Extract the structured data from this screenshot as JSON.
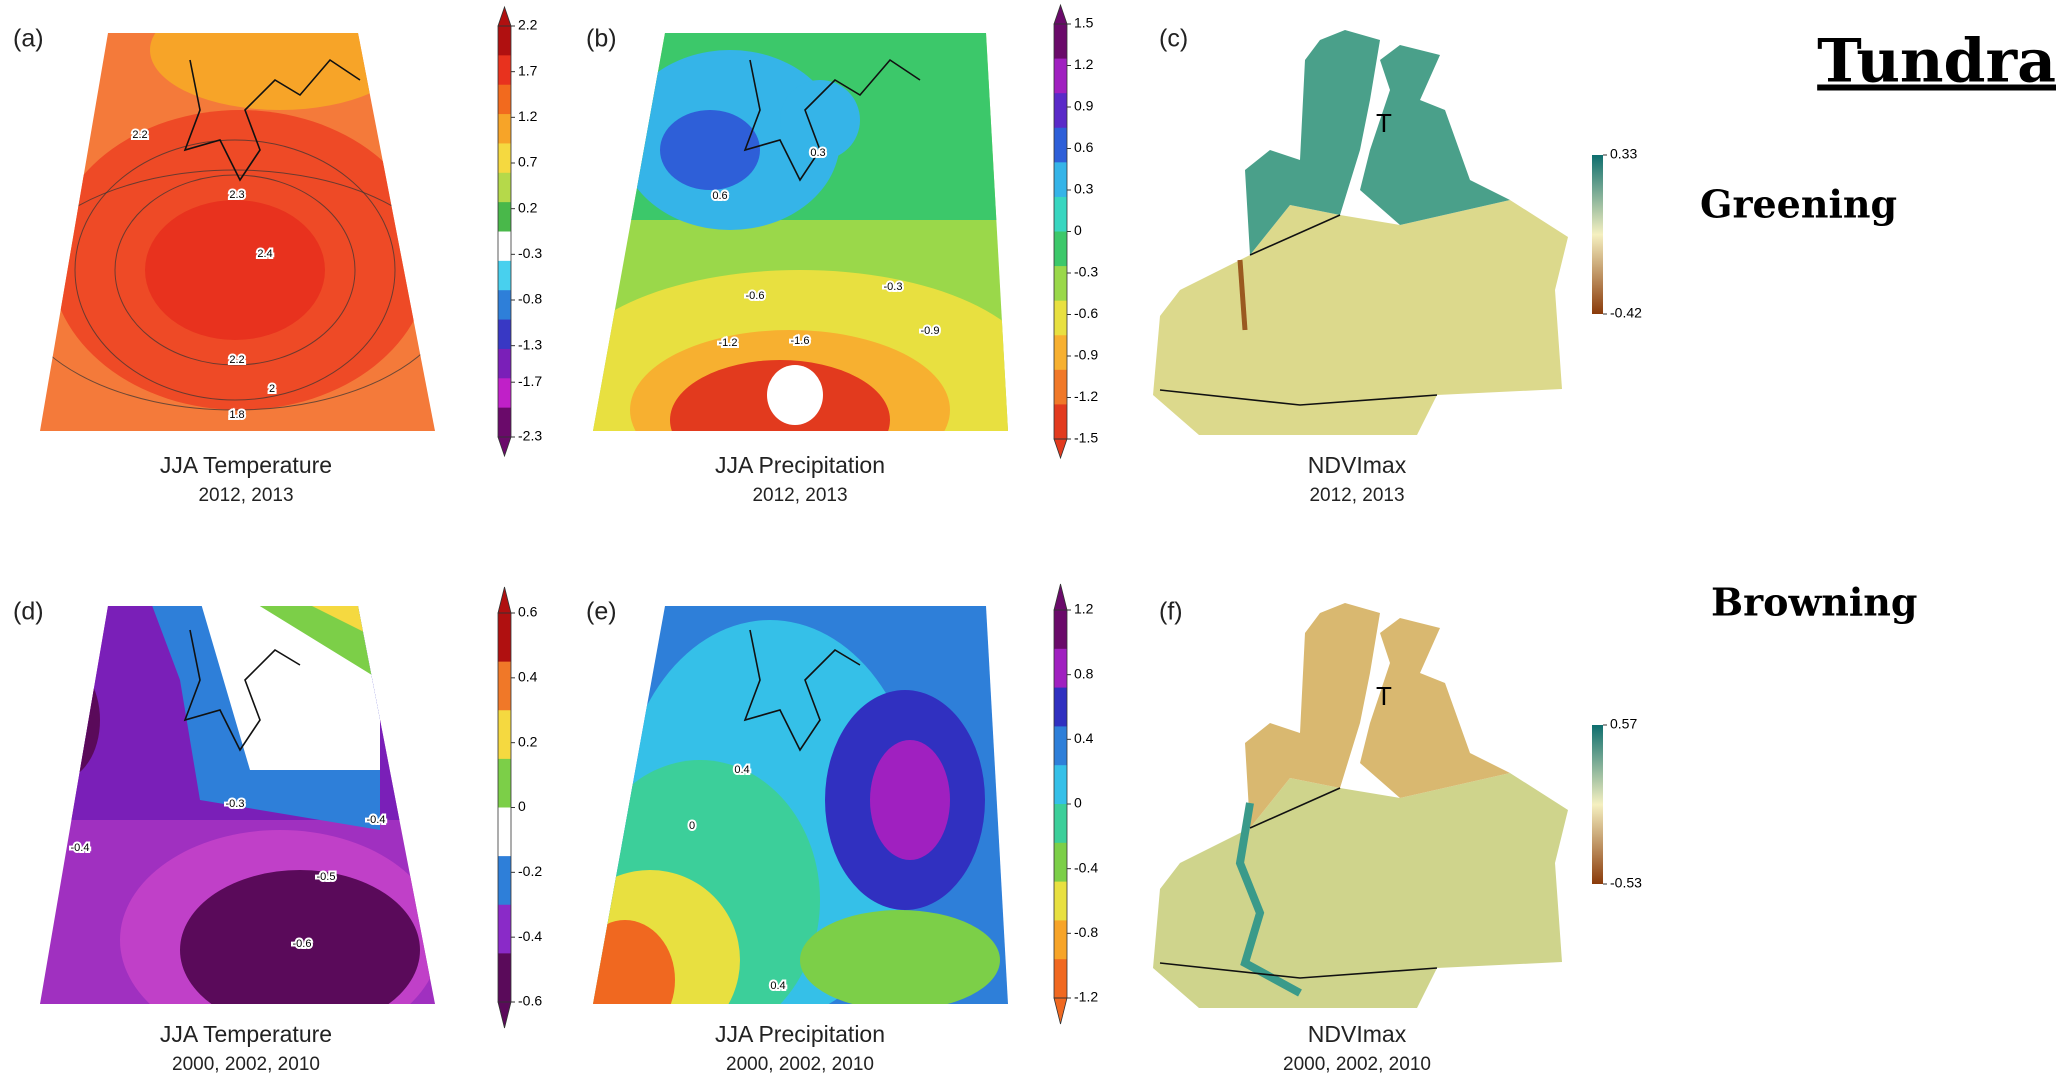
{
  "title": "Tundra",
  "row_labels": [
    "Greening",
    "Browning"
  ],
  "panels": [
    {
      "label": "(a)",
      "caption": "JJA Temperature",
      "years": "2012, 2013",
      "contour_labels": [
        2.2,
        2.3,
        2.4,
        2.2,
        2,
        1.8
      ],
      "colorbar": {
        "lim": [
          -2.3,
          2.2
        ],
        "ticks": [
          2.2,
          1.7,
          1.2,
          0.7,
          0.2,
          -0.3,
          -0.8,
          -1.3,
          -1.7,
          -2.3
        ],
        "colors": [
          "#b01010",
          "#e8321e",
          "#f26a1e",
          "#f7a428",
          "#f5d940",
          "#b5d94a",
          "#49b84a",
          "#ffffff",
          "#48d0ee",
          "#2e7fd9",
          "#3838c4",
          "#7a1fb8",
          "#c020c8",
          "#6a0a6a"
        ]
      }
    },
    {
      "label": "(b)",
      "caption": "JJA Precipitation",
      "years": "2012, 2013",
      "contour_labels": [
        0.3,
        0.6,
        -0.3,
        -0.6,
        -0.9,
        -1.2,
        -1.6
      ],
      "colorbar": {
        "lim": [
          -1.5,
          1.5
        ],
        "ticks": [
          1.5,
          1.2,
          0.9,
          0.6,
          0.3,
          0,
          -0.3,
          -0.6,
          -0.9,
          -1.2,
          -1.5
        ],
        "colors": [
          "#6a0a6a",
          "#a020c0",
          "#5a2ac8",
          "#2e5fd8",
          "#35b4e8",
          "#38d6c0",
          "#3cc86a",
          "#9ad84a",
          "#e8e040",
          "#f7b030",
          "#f07828",
          "#e23a1e"
        ]
      }
    },
    {
      "label": "(c)",
      "caption": "NDVImax",
      "years": "2012, 2013",
      "marker": "T",
      "colorbar": {
        "lim": [
          -0.42,
          0.33
        ],
        "ticks": [
          0.33,
          -0.42
        ],
        "gradient": true,
        "colors": [
          "#0e6e6e",
          "#f5f0c0",
          "#8a3a0a"
        ]
      }
    },
    {
      "label": "(d)",
      "caption": "JJA Temperature",
      "years": "2000, 2002, 2010",
      "contour_labels": [
        -0.3,
        -0.4,
        -0.4,
        -0.5,
        -0.6
      ],
      "colorbar": {
        "lim": [
          -0.6,
          0.6
        ],
        "ticks": [
          0.6,
          0.4,
          0.2,
          0,
          -0.2,
          -0.4,
          -0.6
        ],
        "colors": [
          "#b01010",
          "#f07828",
          "#f5d940",
          "#7ccf48",
          "#ffffff",
          "#2e7fd9",
          "#8a2ac8",
          "#5a0a5a"
        ]
      }
    },
    {
      "label": "(e)",
      "caption": "JJA Precipitation",
      "years": "2000, 2002, 2010",
      "contour_labels": [
        0.4,
        0,
        0.4
      ],
      "colorbar": {
        "lim": [
          -1.2,
          1.2
        ],
        "ticks": [
          1.2,
          0.8,
          0.4,
          0,
          -0.4,
          -0.8,
          -1.2
        ],
        "colors": [
          "#6a0a6a",
          "#a020c0",
          "#3030c0",
          "#2e7fd9",
          "#35c0e8",
          "#3ccf9a",
          "#7ccf48",
          "#e8e040",
          "#f7a428",
          "#f06820"
        ]
      }
    },
    {
      "label": "(f)",
      "caption": "NDVImax",
      "years": "2000, 2002, 2010",
      "marker": "T",
      "colorbar": {
        "lim": [
          -0.53,
          0.57
        ],
        "ticks": [
          0.57,
          -0.53
        ],
        "gradient": true,
        "colors": [
          "#0e6e6e",
          "#f5f0c0",
          "#8a3a0a"
        ]
      }
    }
  ]
}
